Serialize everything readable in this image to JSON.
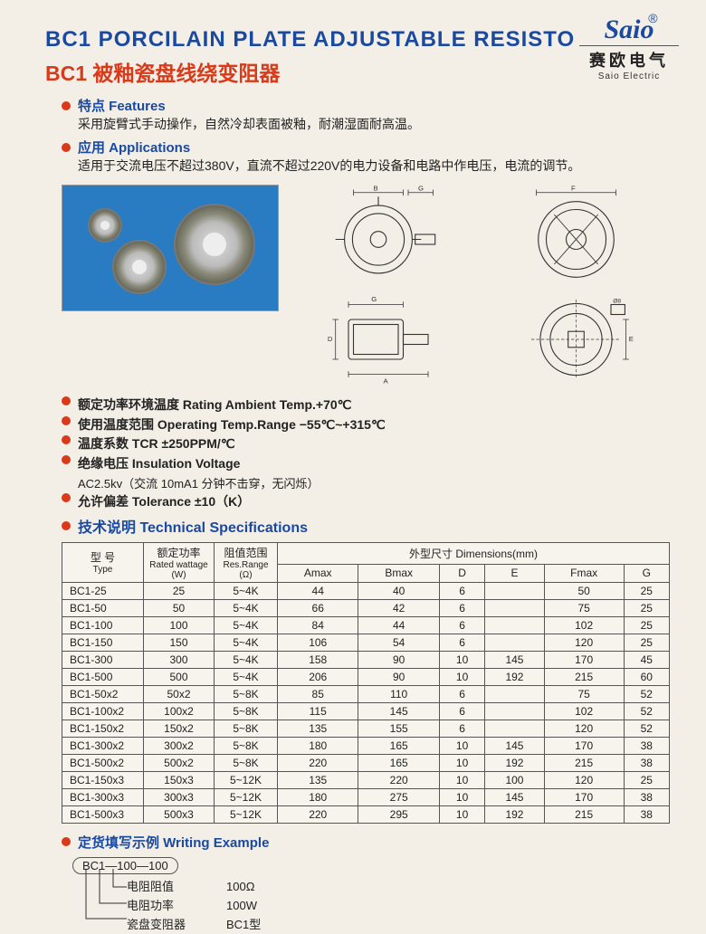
{
  "logo": {
    "brand": "Saio",
    "reg": "®",
    "cn": "赛欧电气",
    "en": "Saio Electric"
  },
  "title_en": "BC1 PORCILAIN PLATE ADJUSTABLE RESISTO",
  "title_cn": "BC1  被釉瓷盘线绕变阻器",
  "features": {
    "label": "特点 Features",
    "text": "采用旋臂式手动操作，自然冷却表面被釉，耐潮湿面耐高温。"
  },
  "applications": {
    "label": "应用 Applications",
    "text": "适用于交流电压不超过380V，直流不超过220V的电力设备和电路中作电压，电流的调节。"
  },
  "spec_bullets": [
    "额定功率环境温度 Rating Ambient Temp.+70℃",
    "使用温度范围 Operating Temp.Range −55℃~+315℃",
    "温度系数 TCR  ±250PPM/℃",
    "绝缘电压 Insulation Voltage",
    "允许偏差 Tolerance ±10（K）"
  ],
  "insulation_sub": "AC2.5kv（交流 10mA1 分钟不击穿，无闪烁）",
  "tech_label": "技术说明 Technical Specifications",
  "table": {
    "head_type_cn": "型 号",
    "head_type_en": "Type",
    "head_watt_cn": "额定功率",
    "head_watt_en": "Rated wattage (W)",
    "head_res_cn": "阻值范围",
    "head_res_en": "Res.Range (Ω)",
    "head_dim": "外型尺寸 Dimensions(mm)",
    "dim_cols": [
      "Amax",
      "Bmax",
      "D",
      "E",
      "Fmax",
      "G"
    ],
    "rows": [
      [
        "BC1-25",
        "25",
        "5~4K",
        "44",
        "40",
        "6",
        "",
        "50",
        "25"
      ],
      [
        "BC1-50",
        "50",
        "5~4K",
        "66",
        "42",
        "6",
        "",
        "75",
        "25"
      ],
      [
        "BC1-100",
        "100",
        "5~4K",
        "84",
        "44",
        "6",
        "",
        "102",
        "25"
      ],
      [
        "BC1-150",
        "150",
        "5~4K",
        "106",
        "54",
        "6",
        "",
        "120",
        "25"
      ],
      [
        "BC1-300",
        "300",
        "5~4K",
        "158",
        "90",
        "10",
        "145",
        "170",
        "45"
      ],
      [
        "BC1-500",
        "500",
        "5~4K",
        "206",
        "90",
        "10",
        "192",
        "215",
        "60"
      ],
      [
        "BC1-50x2",
        "50x2",
        "5~8K",
        "85",
        "110",
        "6",
        "",
        "75",
        "52"
      ],
      [
        "BC1-100x2",
        "100x2",
        "5~8K",
        "115",
        "145",
        "6",
        "",
        "102",
        "52"
      ],
      [
        "BC1-150x2",
        "150x2",
        "5~8K",
        "135",
        "155",
        "6",
        "",
        "120",
        "52"
      ],
      [
        "BC1-300x2",
        "300x2",
        "5~8K",
        "180",
        "165",
        "10",
        "145",
        "170",
        "38"
      ],
      [
        "BC1-500x2",
        "500x2",
        "5~8K",
        "220",
        "165",
        "10",
        "192",
        "215",
        "38"
      ],
      [
        "BC1-150x3",
        "150x3",
        "5~12K",
        "135",
        "220",
        "10",
        "100",
        "120",
        "25"
      ],
      [
        "BC1-300x3",
        "300x3",
        "5~12K",
        "180",
        "275",
        "10",
        "145",
        "170",
        "38"
      ],
      [
        "BC1-500x3",
        "500x3",
        "5~12K",
        "220",
        "295",
        "10",
        "192",
        "215",
        "38"
      ]
    ]
  },
  "writing": {
    "label": "定货填写示例  Writing Example",
    "code": "BC1—100—100",
    "lines": [
      {
        "l": "电阻阻值",
        "v": "100Ω"
      },
      {
        "l": "电阻功率",
        "v": "100W"
      },
      {
        "l": "瓷盘变阻器",
        "v": "BC1型"
      }
    ]
  },
  "colors": {
    "blue": "#1a4aa0",
    "red": "#d93a1a",
    "bg": "#f3eee6"
  }
}
